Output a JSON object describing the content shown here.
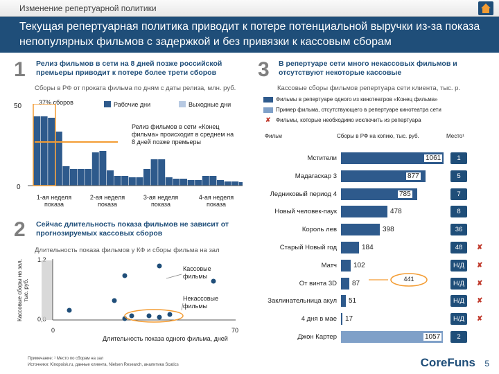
{
  "header": {
    "breadcrumb": "Изменение репертуарной политики"
  },
  "title": "Текущая репертуарная политика приводит к потере потенциальной выручки из-за показа непопулярных фильмов с задержкой и без привязки к кассовым сборам",
  "section1": {
    "num": "1",
    "title": "Релиз фильмов в сети на 8 дней позже российской премьеры приводит к потере более трети сборов",
    "subtitle": "Сборы в РФ от проката фильма по дням с даты релиза, млн. руб.",
    "y_top": "50",
    "y_zero": "0",
    "callout_pct": "37% сборов",
    "legend_work": "Рабочие дни",
    "legend_weekend": "Выходные дни",
    "annotation": "Релиз фильмов в сети «Конец фильма» происходит в среднем на 8 дней позже премьеры",
    "weeks": [
      "1-ая неделя показа",
      "2-ая неделя показа",
      "3-ая неделя показа",
      "4-ая неделя показа"
    ]
  },
  "section2": {
    "num": "2",
    "title": "Сейчас длительность показа фильмов не зависит от прогнозируемых кассовых сборов",
    "subtitle": "Длительность показа фильмов у КФ и сборы фильма на зал",
    "ylabel": "Кассовые сборы на зал, тыс. руб.",
    "xlabel": "Длительность показа одного фильма, дней",
    "y_top": "1,2",
    "y_zero": "0,0",
    "x_zero": "0",
    "x_max": "70",
    "label_hits": "Кассовые фильмы",
    "label_flops": "Некассовые фильмы"
  },
  "section3": {
    "num": "3",
    "title": "В репертуаре сети много некассовых фильмов и отсутствуют некоторые кассовые",
    "subtitle": "Кассовые сборы фильмов репертуара сети клиента, тыс. р.",
    "legend_in_rep": "Фильмы в репертуаре одного из кинотеатров «Конец фильма»",
    "legend_missing": "Пример фильма, отсутствующего в репертуаре кинотеатра сети",
    "legend_exclude": "Фильмы, которые необходимо исключить из репертуара",
    "col_film": "Фильм",
    "col_gross": "Сборы в РФ на копию, тыс. руб.",
    "col_place": "Место¹",
    "avg_value": "441"
  },
  "films": [
    {
      "name": "Мстители",
      "value": 1061,
      "place": "1",
      "excl": false,
      "missing": false
    },
    {
      "name": "Мадагаскар 3",
      "value": 877,
      "place": "5",
      "excl": false,
      "missing": false
    },
    {
      "name": "Ледниковый период 4",
      "value": 785,
      "place": "7",
      "excl": false,
      "missing": false
    },
    {
      "name": "Новый человек-паук",
      "value": 478,
      "place": "8",
      "excl": false,
      "missing": false
    },
    {
      "name": "Король лев",
      "value": 398,
      "place": "36",
      "excl": false,
      "missing": false
    },
    {
      "name": "Старый Новый год",
      "value": 184,
      "place": "48",
      "excl": true,
      "missing": false
    },
    {
      "name": "Матч",
      "value": 102,
      "place": "Н/Д",
      "excl": true,
      "missing": false
    },
    {
      "name": "От винта 3D",
      "value": 87,
      "place": "Н/Д",
      "excl": true,
      "missing": false
    },
    {
      "name": "Заклинательница акул",
      "value": 51,
      "place": "Н/Д",
      "excl": true,
      "missing": false
    },
    {
      "name": "4 дня в мае",
      "value": 17,
      "place": "Н/Д",
      "excl": true,
      "missing": false
    },
    {
      "name": "Джон Картер",
      "value": 1057,
      "place": "2",
      "excl": false,
      "missing": true
    }
  ],
  "footer": {
    "note": "Примечание: ¹ Место по сборам на зал",
    "source": "Источники: Kinopoisk.ru, данные клиента, Nielsen Research, аналитика Scatics",
    "logo": "CoreFuns",
    "page": "5"
  },
  "colors": {
    "navy": "#1f4e79",
    "bar": "#2e5a8c",
    "orange": "#f39c33",
    "red": "#c0392b"
  }
}
